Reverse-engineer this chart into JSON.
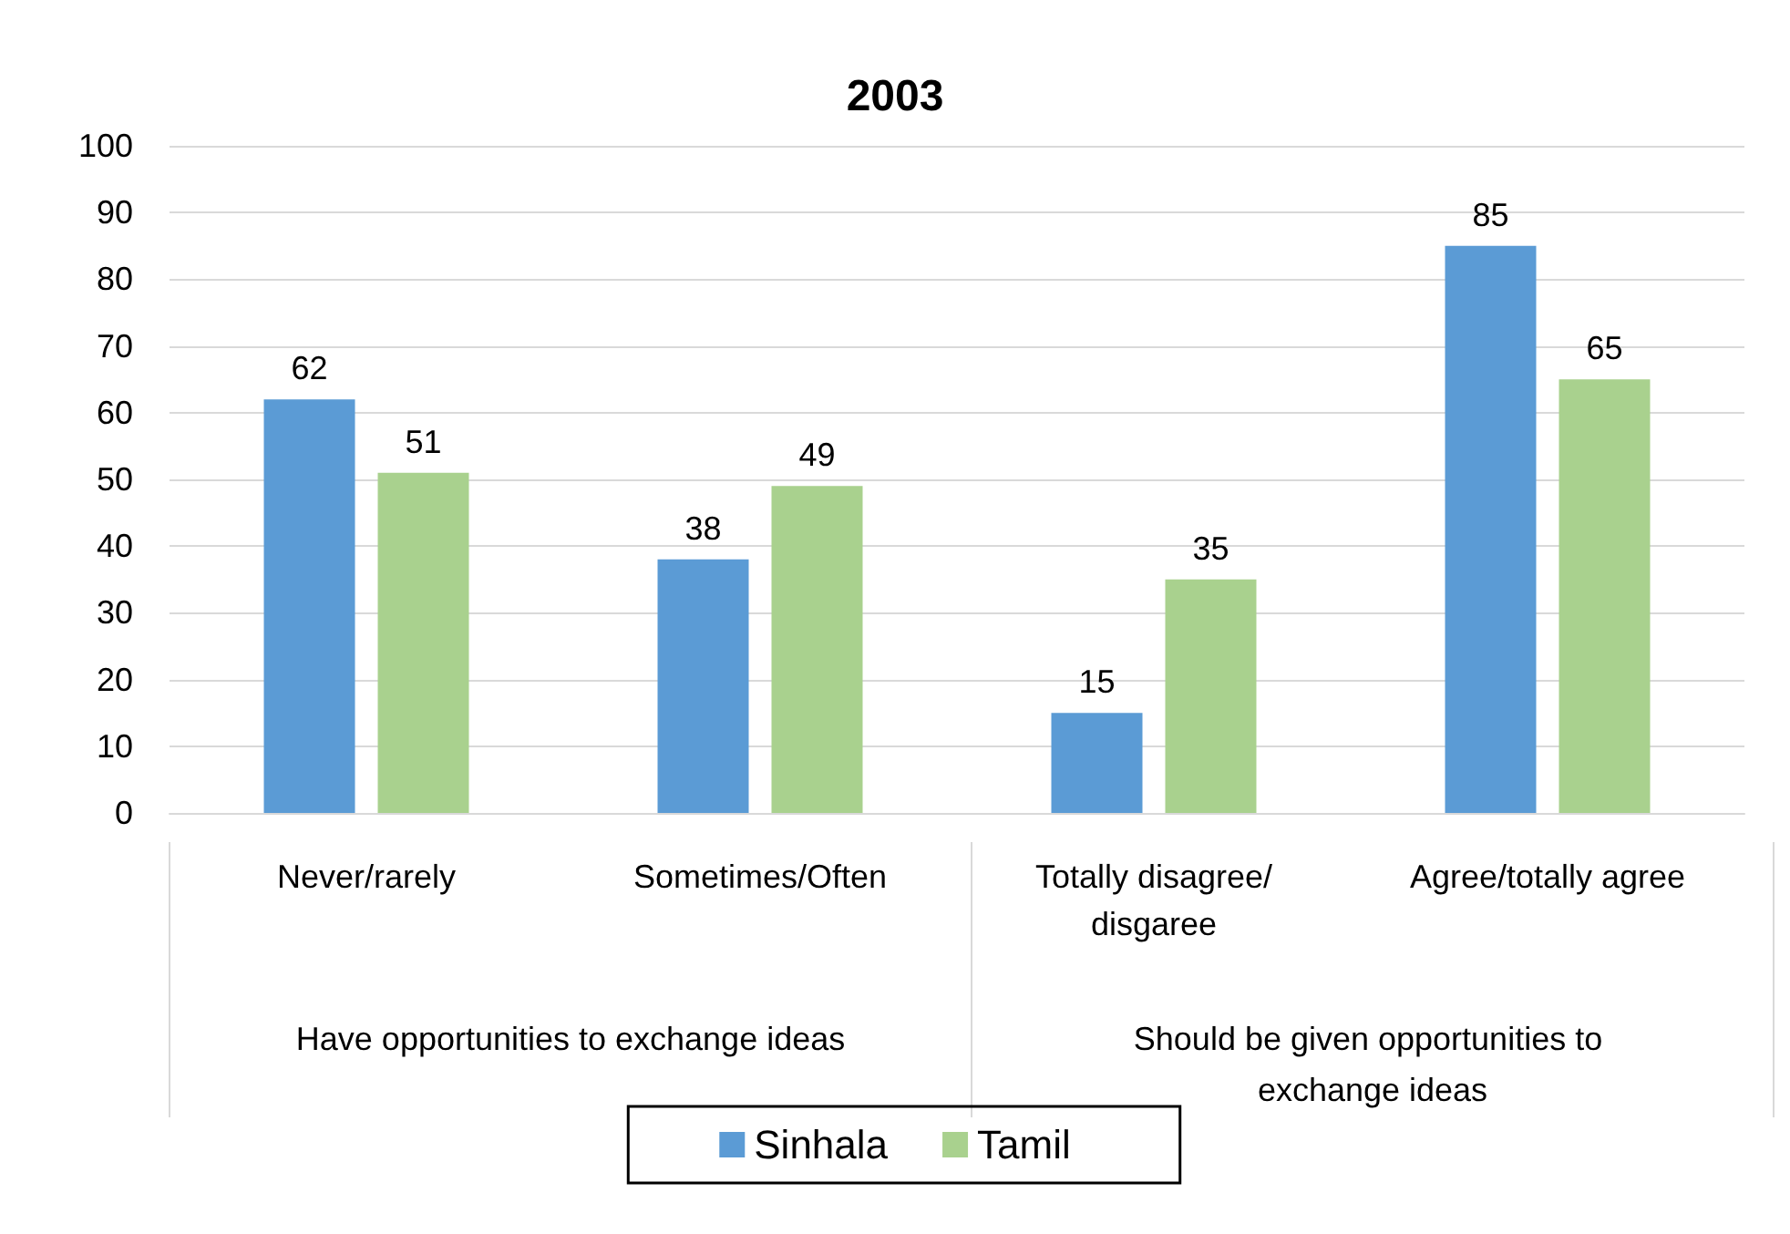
{
  "chart_data": {
    "type": "bar",
    "title": "2003",
    "categories": [
      "Never/rarely",
      "Sometimes/Often",
      "Totally disagree/disgaree",
      "Agree/totally agree"
    ],
    "series": [
      {
        "name": "Sinhala",
        "color": "#5b9bd5",
        "values": [
          62,
          38,
          15,
          85
        ]
      },
      {
        "name": "Tamil",
        "color": "#a9d18e",
        "values": [
          51,
          49,
          35,
          65
        ]
      }
    ],
    "annotations": [
      "Have opportunities to exchange ideas",
      "Should be given opportunities to exchange ideas"
    ],
    "ylim": [
      0,
      100
    ],
    "yticks": [
      0,
      10,
      20,
      30,
      40,
      50,
      60,
      70,
      80,
      90,
      100
    ],
    "grid": "y",
    "legend": "bottom",
    "data_labels": true
  }
}
